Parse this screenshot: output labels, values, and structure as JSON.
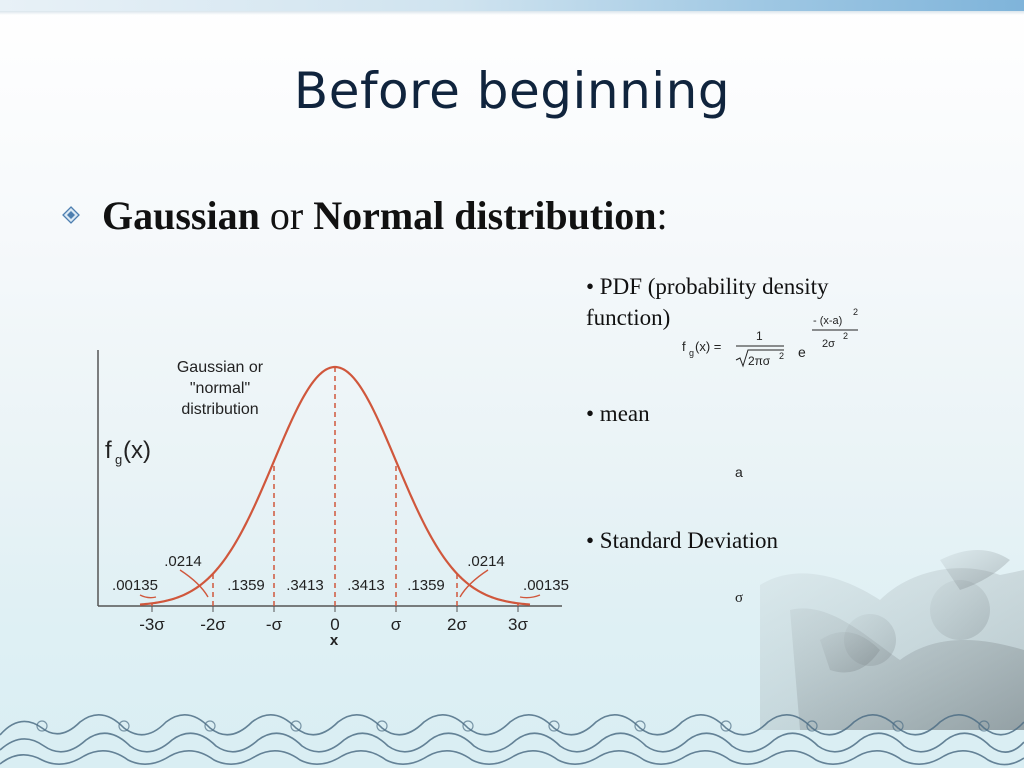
{
  "slide": {
    "title": "Before beginning",
    "heading": {
      "part1": "Gaussian",
      "part2": " or ",
      "part3": "Normal distribution",
      "part4": ":"
    },
    "bullet_icon": "diamond-bullet-icon"
  },
  "right_panel": {
    "pdf_label_line1": "• PDF (probability density",
    "pdf_label_line2": "function)",
    "pdf_formula": {
      "lhs": "f",
      "lhs_sub": "g",
      "lhs_arg": "(x) =",
      "numerator": "1",
      "denominator": "2πσ",
      "denominator_power": "2",
      "base": "e",
      "exp_numerator": "- (x-a)",
      "exp_numerator_power": "2",
      "exp_denominator": "2σ",
      "exp_denominator_power": "2"
    },
    "mean_label": "• mean",
    "mean_symbol": "a",
    "sd_label": "• Standard Deviation",
    "sd_symbol": "σ"
  },
  "diagram": {
    "caption_lines": [
      "Gaussian or",
      "\"normal\"",
      "distribution"
    ],
    "ylabel": "f",
    "ylabel_sub": "g",
    "ylabel_arg": "(x)",
    "xlabel": "x",
    "tick_labels": [
      "-3σ",
      "-2σ",
      "-σ",
      "0",
      "σ",
      "2σ",
      "3σ"
    ],
    "region_labels": [
      ".1359",
      ".3413",
      ".3413",
      ".1359"
    ],
    "tail_labels": [
      ".0214",
      ".0214"
    ],
    "outer_labels": [
      ".00135",
      ".00135"
    ],
    "curve_color": "#d0573c",
    "dash_color": "#d0573c"
  }
}
